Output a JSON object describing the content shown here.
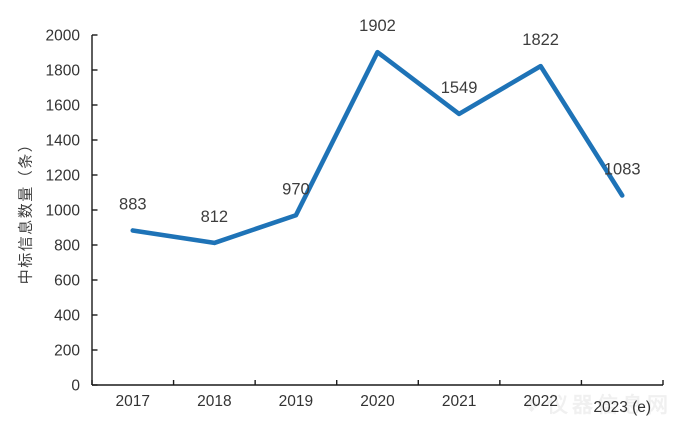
{
  "chart_data": {
    "type": "line",
    "title": "",
    "categories": [
      "2017",
      "2018",
      "2019",
      "2020",
      "2021",
      "2022",
      "2023 (e)"
    ],
    "values": [
      883,
      812,
      970,
      1902,
      1549,
      1822,
      1083
    ],
    "data_labels": [
      "883",
      "812",
      "970",
      "1902",
      "1549",
      "1822",
      "1083"
    ],
    "xlabel": "",
    "ylabel": "中标信息数量（条）",
    "ylim": [
      0,
      2000
    ],
    "ytick_step": 200,
    "grid": false,
    "legend": "none",
    "line_color": "#1E73B7",
    "axis_color": "#1a1a1a",
    "tick_label_color": "#333333",
    "data_label_color": "#3d3d3d",
    "watermark": "仪器信息网"
  },
  "icons": {
    "watermark_logo": "❖"
  }
}
